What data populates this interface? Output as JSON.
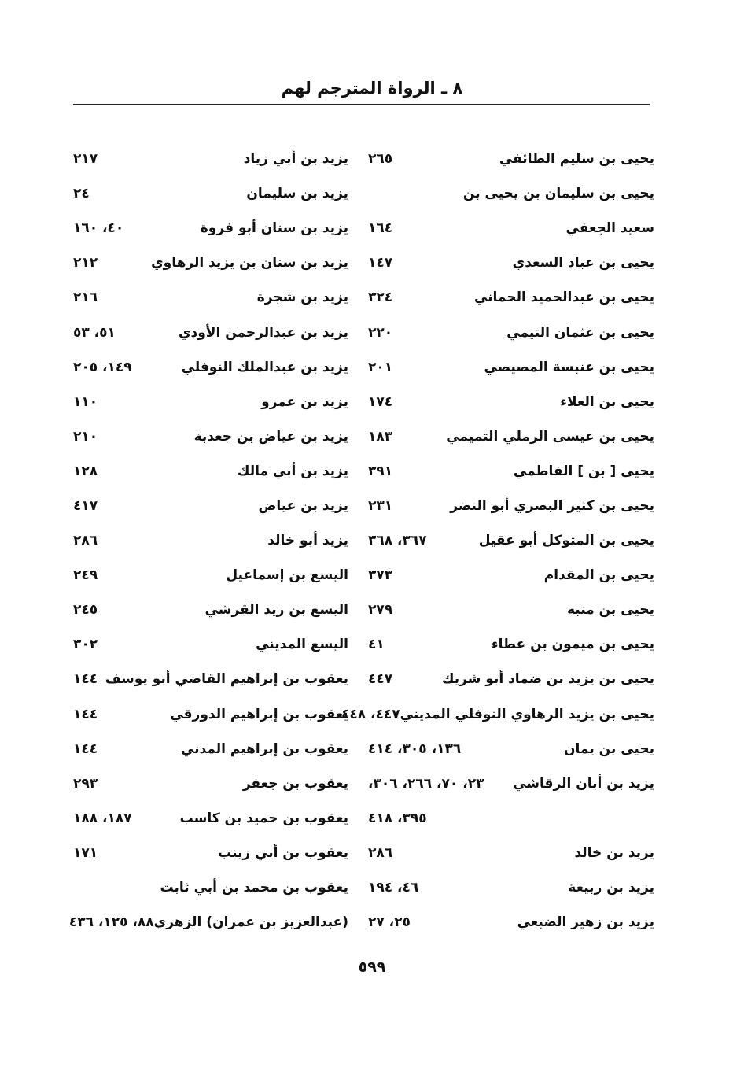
{
  "header": {
    "title": "٨ ـ الرواة المترجم لهم"
  },
  "right_column": [
    {
      "name": "يحيى بن سليم الطائفي",
      "pages": "٢٦٥"
    },
    {
      "name": "يحيى بن سليمان بن يحيى بن",
      "pages": ""
    },
    {
      "name": "سعيد الجعفي",
      "pages": "١٦٤"
    },
    {
      "name": "يحيى بن عباد السعدي",
      "pages": "١٤٧"
    },
    {
      "name": "يحيى بن عبدالحميد الحماني",
      "pages": "٣٢٤"
    },
    {
      "name": "يحيى بن عثمان التيمي",
      "pages": "٢٢٠"
    },
    {
      "name": "يحيى بن عنبسة المصيصي",
      "pages": "٢٠١"
    },
    {
      "name": "يحيى بن العلاء",
      "pages": "١٧٤"
    },
    {
      "name": "يحيى بن عيسى الرملي التميمي",
      "pages": "١٨٣"
    },
    {
      "name": "يحيى [ بن ] الفاطمي",
      "pages": "٣٩١"
    },
    {
      "name": "يحيى بن كثير البصري أبو النضر",
      "pages": "٢٣١"
    },
    {
      "name": "يحيى بن المتوكل أبو عقيل",
      "pages": "٣٦٧، ٣٦٨"
    },
    {
      "name": "يحيى بن المقدام",
      "pages": "٣٧٣"
    },
    {
      "name": "يحيى بن منبه",
      "pages": "٢٧٩"
    },
    {
      "name": "يحيى بن ميمون بن عطاء",
      "pages": "٤١"
    },
    {
      "name": "يحيى بن يزيد بن ضماد أبو شريك",
      "pages": "٤٤٧"
    },
    {
      "name": "يحيى بن يزيد الرهاوي النوفلي المديني",
      "pages": "٤٤٧، ٤٤٨"
    },
    {
      "name": "يحيى بن يمان",
      "pages": "١٣٦، ٣٠٥، ٤١٤"
    },
    {
      "name": "يزيد بن أبان الرقاشي",
      "pages": "٢٣، ٧٠، ٢٦٦، ٣٠٦،"
    },
    {
      "name": "",
      "pages": "٣٩٥، ٤١٨"
    },
    {
      "name": "يزيد بن خالد",
      "pages": "٢٨٦"
    },
    {
      "name": "يزيد بن ربيعة",
      "pages": "٤٦، ١٩٤"
    },
    {
      "name": "يزيد بن زهير الضبعي",
      "pages": "٢٥، ٢٧"
    }
  ],
  "left_column": [
    {
      "name": "يزيد بن أبي زياد",
      "pages": "٢١٧"
    },
    {
      "name": "يزيد بن سليمان",
      "pages": "٢٤"
    },
    {
      "name": "يزيد بن سنان أبو فروة",
      "pages": "٤٠، ١٦٠"
    },
    {
      "name": "يزيد بن سنان بن يزيد الرهاوي",
      "pages": "٢١٢"
    },
    {
      "name": "يزيد بن شجرة",
      "pages": "٢١٦"
    },
    {
      "name": "يزيد بن عبدالرحمن الأودي",
      "pages": "٥١، ٥٣"
    },
    {
      "name": "يزيد بن عبدالملك النوفلي",
      "pages": "١٤٩، ٢٠٥"
    },
    {
      "name": "يزيد بن عمرو",
      "pages": "١١٠"
    },
    {
      "name": "يزيد بن عياض بن جعدبة",
      "pages": "٢١٠"
    },
    {
      "name": "يزيد بن أبي مالك",
      "pages": "١٢٨"
    },
    {
      "name": "يزيد بن عياض",
      "pages": "٤١٧"
    },
    {
      "name": "يزيد أبو خالد",
      "pages": "٢٨٦"
    },
    {
      "name": "اليسع بن إسماعيل",
      "pages": "٢٤٩"
    },
    {
      "name": "اليسع بن زيد القرشي",
      "pages": "٢٤٥"
    },
    {
      "name": "اليسع المديني",
      "pages": "٣٠٢"
    },
    {
      "name": "يعقوب بن إبراهيم القاضي أبو يوسف",
      "pages": "١٤٤"
    },
    {
      "name": "يعقوب بن إبراهيم الدورقي",
      "pages": "١٤٤"
    },
    {
      "name": "يعقوب بن إبراهيم المدني",
      "pages": "١٤٤"
    },
    {
      "name": "يعقوب بن جعفر",
      "pages": "٢٩٣"
    },
    {
      "name": "يعقوب بن حميد بن كاسب",
      "pages": "١٨٧، ١٨٨"
    },
    {
      "name": "يعقوب بن أبي زينب",
      "pages": "١٧١"
    },
    {
      "name": "يعقوب بن محمد بن أبي ثابت",
      "pages": ""
    },
    {
      "name": "(عبدالعزيز بن عمران) الزهري",
      "pages": "٨٨، ١٢٥، ٤٣٦"
    }
  ],
  "footer": {
    "page_number": "٥٩٩"
  }
}
